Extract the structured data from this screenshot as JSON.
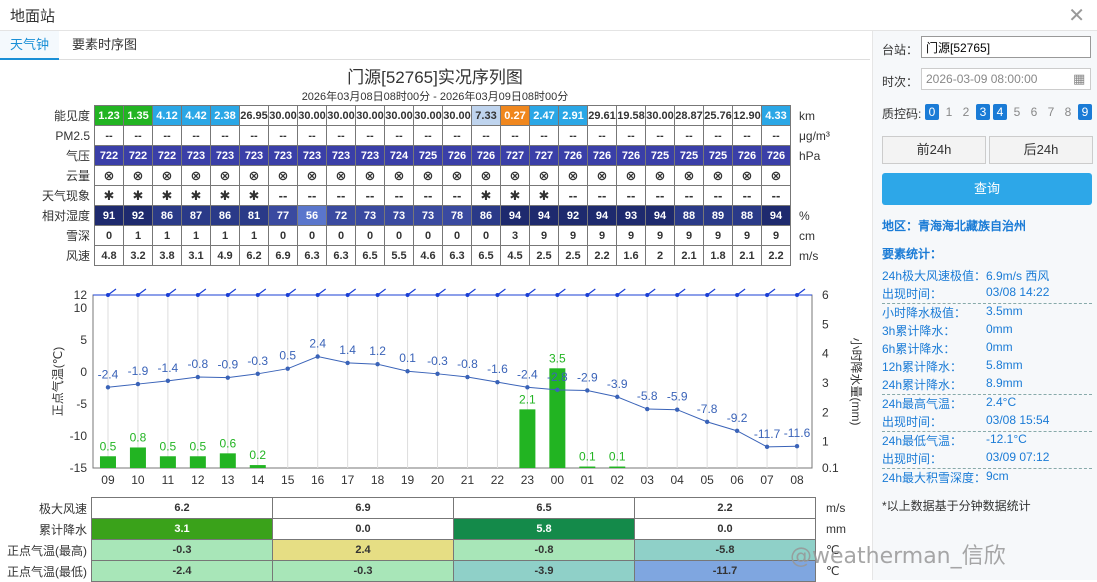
{
  "window": {
    "title": "地面站"
  },
  "tabs": [
    {
      "label": "天气钟"
    },
    {
      "label": "要素时序图"
    }
  ],
  "chart": {
    "title": "门源[52765]实况序列图",
    "subtitle": "2026年03月08日08时00分 - 2026年03月09日08时00分"
  },
  "rows": {
    "vis": {
      "label": "能见度",
      "unit": "km",
      "values": [
        "1.23",
        "1.35",
        "4.12",
        "4.42",
        "2.38",
        "26.95",
        "30.00",
        "30.00",
        "30.00",
        "30.00",
        "30.00",
        "30.00",
        "30.00",
        "7.33",
        "0.27",
        "2.47",
        "2.91",
        "29.61",
        "19.58",
        "30.00",
        "28.87",
        "25.76",
        "12.90",
        "4.33"
      ],
      "colors": [
        "#22b422",
        "#22b422",
        "#2aa7e6",
        "#2aa7e6",
        "#2aa7e6",
        "#fff",
        "#fff",
        "#fff",
        "#fff",
        "#fff",
        "#fff",
        "#fff",
        "#fff",
        "#bfd4ee",
        "#f0871e",
        "#2aa7e6",
        "#2aa7e6",
        "#fff",
        "#fff",
        "#fff",
        "#fff",
        "#fff",
        "#fff",
        "#2aa7e6"
      ]
    },
    "pm25": {
      "label": "PM2.5",
      "unit": "μg/m³",
      "values": [
        "--",
        "--",
        "--",
        "--",
        "--",
        "--",
        "--",
        "--",
        "--",
        "--",
        "--",
        "--",
        "--",
        "--",
        "--",
        "--",
        "--",
        "--",
        "--",
        "--",
        "--",
        "--",
        "--",
        "--"
      ]
    },
    "pres": {
      "label": "气压",
      "unit": "hPa",
      "values": [
        "722",
        "722",
        "722",
        "723",
        "723",
        "723",
        "723",
        "723",
        "723",
        "723",
        "724",
        "725",
        "726",
        "726",
        "727",
        "727",
        "726",
        "726",
        "726",
        "725",
        "725",
        "725",
        "726",
        "726"
      ]
    },
    "cloud": {
      "label": "云量",
      "unit": "",
      "values": [
        "⊗",
        "⊗",
        "⊗",
        "⊗",
        "⊗",
        "⊗",
        "⊗",
        "⊗",
        "⊗",
        "⊗",
        "⊗",
        "⊗",
        "⊗",
        "⊗",
        "⊗",
        "⊗",
        "⊗",
        "⊗",
        "⊗",
        "⊗",
        "⊗",
        "⊗",
        "⊗",
        "⊗"
      ]
    },
    "wx": {
      "label": "天气现象",
      "unit": "",
      "values": [
        "✱",
        "✱",
        "✱",
        "✱",
        "✱",
        "✱",
        "--",
        "--",
        "--",
        "--",
        "--",
        "--",
        "--",
        "✱",
        "✱",
        "✱",
        "--",
        "--",
        "--",
        "--",
        "--",
        "--",
        "--",
        "--"
      ]
    },
    "rh": {
      "label": "相对湿度",
      "unit": "%",
      "values": [
        "91",
        "92",
        "86",
        "87",
        "86",
        "81",
        "77",
        "56",
        "72",
        "73",
        "73",
        "73",
        "78",
        "86",
        "94",
        "94",
        "92",
        "94",
        "93",
        "94",
        "88",
        "89",
        "88",
        "94"
      ]
    },
    "snow": {
      "label": "雪深",
      "unit": "cm",
      "values": [
        "0",
        "1",
        "1",
        "1",
        "1",
        "1",
        "0",
        "0",
        "0",
        "0",
        "0",
        "0",
        "0",
        "0",
        "3",
        "9",
        "9",
        "9",
        "9",
        "9",
        "9",
        "9",
        "9",
        "9"
      ]
    },
    "wind": {
      "label": "风速",
      "unit": "m/s",
      "values": [
        "4.8",
        "3.2",
        "3.8",
        "3.1",
        "4.9",
        "6.2",
        "6.9",
        "6.3",
        "6.3",
        "6.5",
        "5.5",
        "4.6",
        "6.3",
        "6.5",
        "4.5",
        "2.5",
        "2.5",
        "2.2",
        "1.6",
        "2",
        "2.1",
        "1.8",
        "2.1",
        "2.2"
      ]
    }
  },
  "chart_data": {
    "type": "line",
    "x": [
      "09",
      "10",
      "11",
      "12",
      "13",
      "14",
      "15",
      "16",
      "17",
      "18",
      "19",
      "20",
      "21",
      "22",
      "23",
      "00",
      "01",
      "02",
      "03",
      "04",
      "05",
      "06",
      "07",
      "08"
    ],
    "series": [
      {
        "values": [
          -2.4,
          -1.9,
          -1.4,
          -0.8,
          -0.9,
          -0.3,
          0.5,
          2.4,
          1.4,
          1.2,
          0.1,
          -0.3,
          -0.8,
          -1.6,
          -2.4,
          -2.8,
          -2.9,
          -3.9,
          -5.8,
          -5.9,
          -7.8,
          -9.2,
          -11.7,
          -11.6
        ],
        "color": "#3a63b8",
        "axis": "left"
      },
      {
        "values": [
          0.5,
          0.8,
          0.5,
          0.5,
          0.6,
          0.2,
          0,
          0,
          0,
          0,
          0,
          0,
          0,
          0,
          2.1,
          3.5,
          0.1,
          0.1,
          0,
          0,
          0,
          0,
          0,
          0
        ],
        "color": "#22b422",
        "axis": "right",
        "kind": "bar"
      }
    ],
    "ylabel": "正点气温(℃)",
    "y2label": "小时降水量(mm)",
    "ylim": [
      -15,
      12
    ],
    "y2lim": [
      0.1,
      6
    ],
    "yticks": [
      "12",
      "10",
      "5",
      "0",
      "-5",
      "-10",
      "-15"
    ],
    "y2ticks": [
      "6",
      "5",
      "4",
      "3",
      "2",
      "1",
      "0.1"
    ]
  },
  "summary": {
    "rows": [
      {
        "label": "极大风速",
        "unit": "m/s",
        "values": [
          "6.2",
          "6.9",
          "6.5",
          "2.2"
        ],
        "colors": [
          "#fff",
          "#fff",
          "#fff",
          "#fff"
        ]
      },
      {
        "label": "累计降水",
        "unit": "mm",
        "values": [
          "3.1",
          "0.0",
          "5.8",
          "0.0"
        ],
        "colors": [
          "#3aa21a",
          "#fff",
          "#148a4a",
          "#fff"
        ]
      },
      {
        "label": "正点气温(最高)",
        "unit": "℃",
        "values": [
          "-0.3",
          "2.4",
          "-0.8",
          "-5.8"
        ],
        "colors": [
          "#a8e6b8",
          "#e6de84",
          "#a8e6b8",
          "#8fd0c8"
        ]
      },
      {
        "label": "正点气温(最低)",
        "unit": "℃",
        "values": [
          "-2.4",
          "-0.3",
          "-3.9",
          "-11.7"
        ],
        "colors": [
          "#a8e6b8",
          "#a8e6b8",
          "#8fd0c8",
          "#7fa6e0"
        ]
      }
    ]
  },
  "side": {
    "station_label": "台站：",
    "station_value": "门源[52765]",
    "time_label": "时次：",
    "time_value": "2026-03-09 08:00:00",
    "qc_label": "质控码:",
    "qc": [
      {
        "n": "0",
        "on": true
      },
      {
        "n": "1",
        "on": false
      },
      {
        "n": "2",
        "on": false
      },
      {
        "n": "3",
        "on": true
      },
      {
        "n": "4",
        "on": true
      },
      {
        "n": "5",
        "on": false
      },
      {
        "n": "6",
        "on": false
      },
      {
        "n": "7",
        "on": false
      },
      {
        "n": "8",
        "on": false
      },
      {
        "n": "9",
        "on": true
      }
    ],
    "prev": "前24h",
    "next": "后24h",
    "query": "查询",
    "region": "地区：青海海北藏族自治州",
    "stats_title": "要素统计：",
    "stats": [
      {
        "k": "24h极大风速极值：",
        "v": "6.9m/s 西风"
      },
      {
        "k": "出现时间：",
        "v": "03/08 14:22"
      },
      {
        "k": "小时降水极值：",
        "v": "3.5mm"
      },
      {
        "k": "3h累计降水：",
        "v": "0mm"
      },
      {
        "k": "6h累计降水：",
        "v": "0mm"
      },
      {
        "k": "12h累计降水：",
        "v": "5.8mm"
      },
      {
        "k": "24h累计降水：",
        "v": "8.9mm"
      },
      {
        "k": "24h最高气温：",
        "v": "2.4°C"
      },
      {
        "k": "出现时间：",
        "v": "03/08 15:54"
      },
      {
        "k": "24h最低气温：",
        "v": "-12.1°C"
      },
      {
        "k": "出现时间：",
        "v": "03/09 07:12"
      },
      {
        "k": "24h最大积雪深度：",
        "v": "9cm"
      }
    ],
    "note": "*以上数据基于分钟数据统计"
  },
  "watermark": "@weatherman_信欣",
  "icons": {
    "close": "close-icon",
    "calendar": "calendar-icon"
  }
}
